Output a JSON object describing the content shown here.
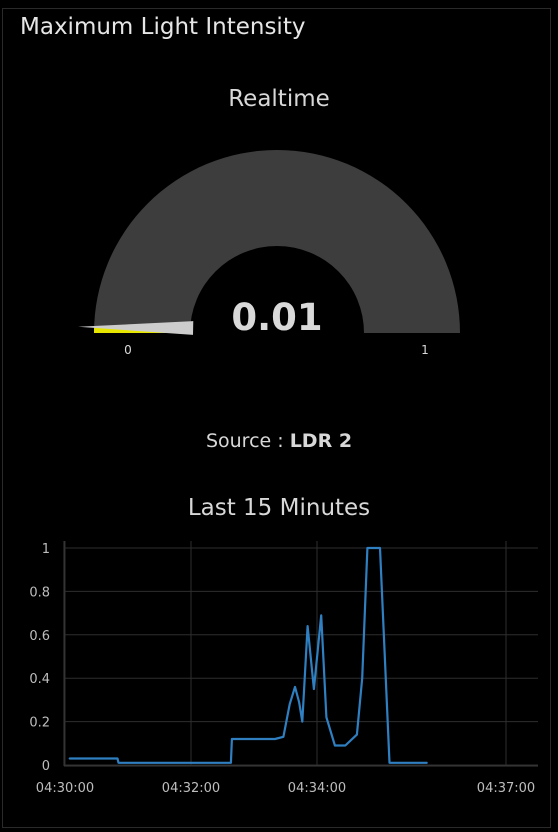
{
  "panel": {
    "title": "Maximum Light Intensity"
  },
  "gauge": {
    "label": "Realtime",
    "value": 0.01,
    "value_text": "0.01",
    "min_label": "0",
    "max_label": "1",
    "min": 0,
    "max": 1,
    "track_color": "#3d3d3d",
    "fill_color": "#e6e600",
    "needle_color": "#cccccc"
  },
  "source": {
    "prefix": "Source : ",
    "name": "LDR 2"
  },
  "chart": {
    "label": "Last 15 Minutes"
  },
  "chart_data": {
    "type": "line",
    "title": "Last 15 Minutes",
    "xlabel": "",
    "ylabel": "",
    "ylim": [
      0,
      1
    ],
    "y_ticks": [
      "0",
      "0.2",
      "0.4",
      "0.6",
      "0.8",
      "1"
    ],
    "x_ticks": [
      "04:30:00",
      "04:32:00",
      "04:34:00",
      "04:37:00"
    ],
    "grid": true,
    "color": "#2f7fc1",
    "series": [
      {
        "points": [
          [
            "04:30:04",
            0.03
          ],
          [
            "04:30:50",
            0.03
          ],
          [
            "04:30:51",
            0.01
          ],
          [
            "04:32:38",
            0.01
          ],
          [
            "04:32:39",
            0.12
          ],
          [
            "04:33:20",
            0.12
          ],
          [
            "04:33:28",
            0.13
          ],
          [
            "04:33:34",
            0.28
          ],
          [
            "04:33:39",
            0.36
          ],
          [
            "04:33:43",
            0.29
          ],
          [
            "04:33:46",
            0.2
          ],
          [
            "04:33:51",
            0.64
          ],
          [
            "04:33:57",
            0.35
          ],
          [
            "04:34:04",
            0.69
          ],
          [
            "04:34:09",
            0.22
          ],
          [
            "04:34:17",
            0.09
          ],
          [
            "04:34:27",
            0.09
          ],
          [
            "04:34:38",
            0.14
          ],
          [
            "04:34:43",
            0.4
          ],
          [
            "04:34:48",
            1.0
          ],
          [
            "04:35:00",
            1.0
          ],
          [
            "04:35:09",
            0.01
          ],
          [
            "04:35:45",
            0.01
          ]
        ]
      }
    ]
  }
}
